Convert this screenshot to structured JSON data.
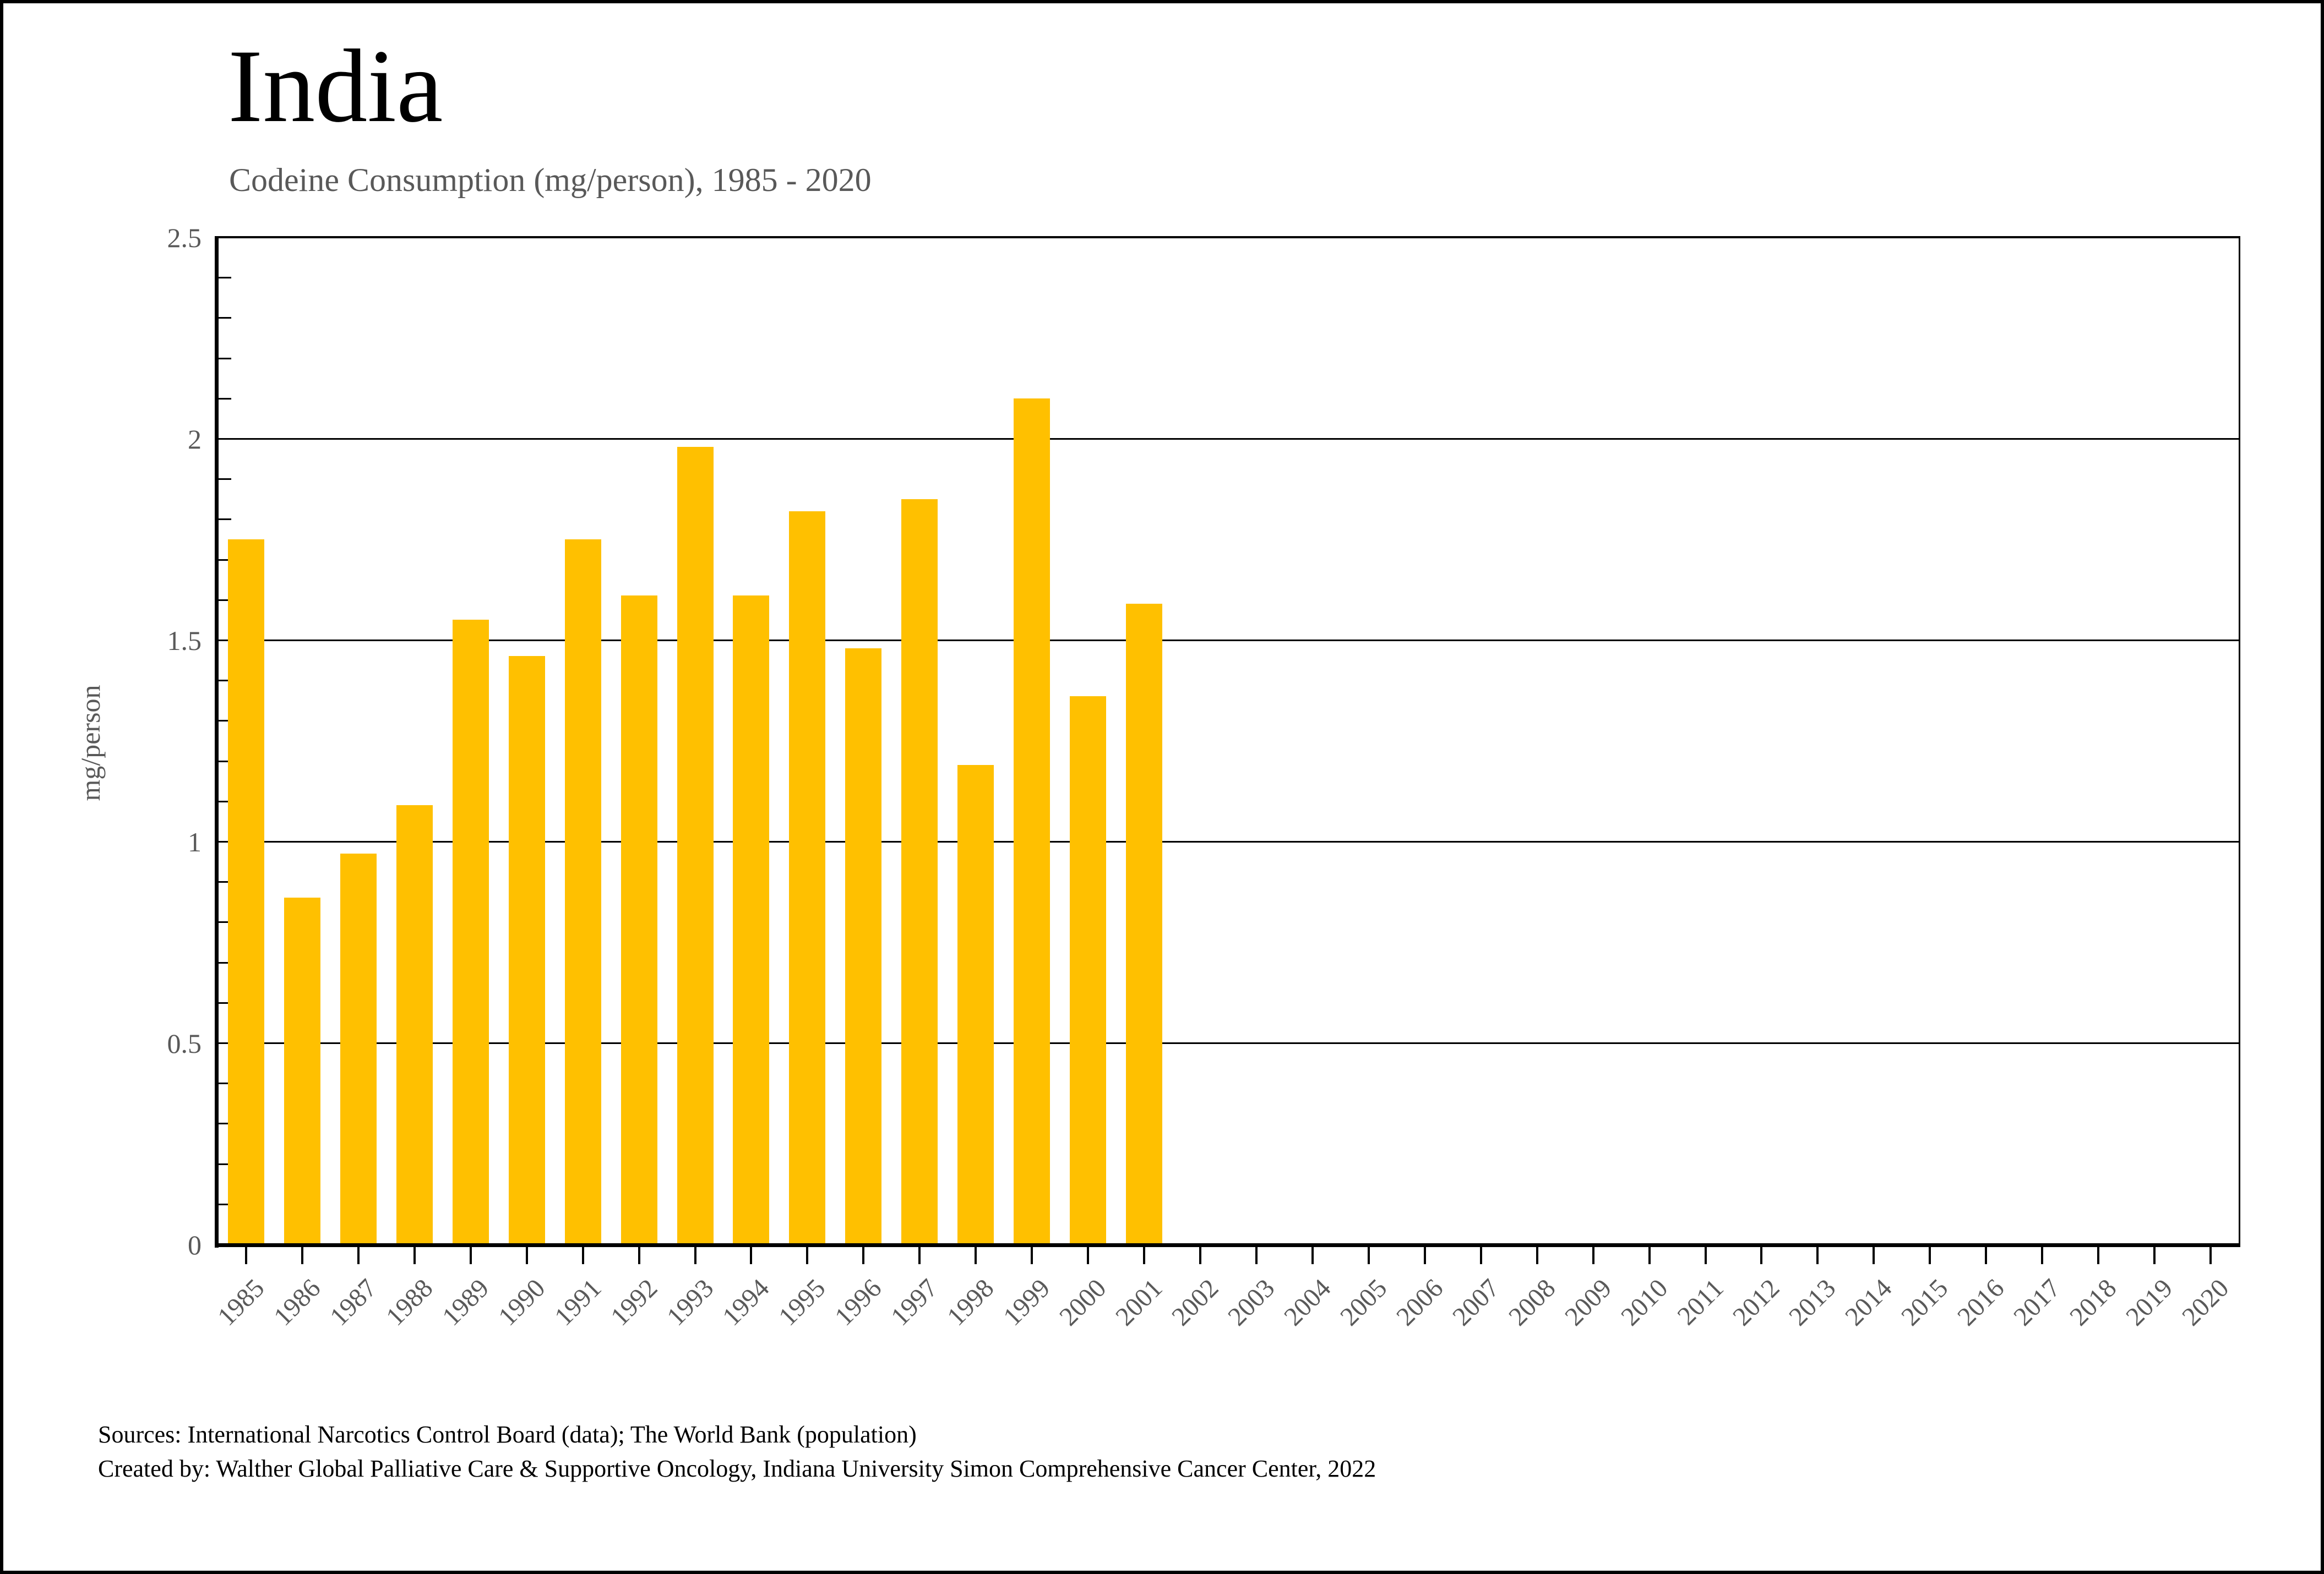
{
  "header": {
    "title": "India",
    "subtitle": "Codeine Consumption (mg/person), 1985 - 2020"
  },
  "chart_data": {
    "type": "bar",
    "title": "India",
    "subtitle": "Codeine Consumption (mg/person), 1985 - 2020",
    "xlabel": "",
    "ylabel": "mg/person",
    "ylim": [
      0,
      2.5
    ],
    "yticks": [
      0,
      0.5,
      1,
      1.5,
      2,
      2.5
    ],
    "ytick_labels": [
      "0",
      "0.5",
      "1",
      "1.5",
      "2",
      "2.5"
    ],
    "minor_tick_step": 0.1,
    "grid": "horizontal",
    "legend": "none",
    "bar_color": "#FFC000",
    "categories": [
      "1985",
      "1986",
      "1987",
      "1988",
      "1989",
      "1990",
      "1991",
      "1992",
      "1993",
      "1994",
      "1995",
      "1996",
      "1997",
      "1998",
      "1999",
      "2000",
      "2001",
      "2002",
      "2003",
      "2004",
      "2005",
      "2006",
      "2007",
      "2008",
      "2009",
      "2010",
      "2011",
      "2012",
      "2013",
      "2014",
      "2015",
      "2016",
      "2017",
      "2018",
      "2019",
      "2020"
    ],
    "values": [
      1.75,
      0.86,
      0.97,
      1.09,
      1.55,
      1.46,
      1.75,
      1.61,
      1.98,
      1.61,
      1.82,
      1.48,
      1.85,
      1.19,
      2.1,
      1.36,
      1.59,
      0,
      0,
      0,
      0,
      0,
      0,
      0,
      0,
      0,
      0,
      0,
      0,
      0,
      0,
      0,
      0,
      0,
      0,
      0
    ]
  },
  "footer": {
    "source_line1": "Sources: International Narcotics Control Board (data); The World Bank (population)",
    "source_line2": "Created by: Walther Global Palliative Care & Supportive Oncology, Indiana University Simon Comprehensive Cancer Center, 2022"
  }
}
